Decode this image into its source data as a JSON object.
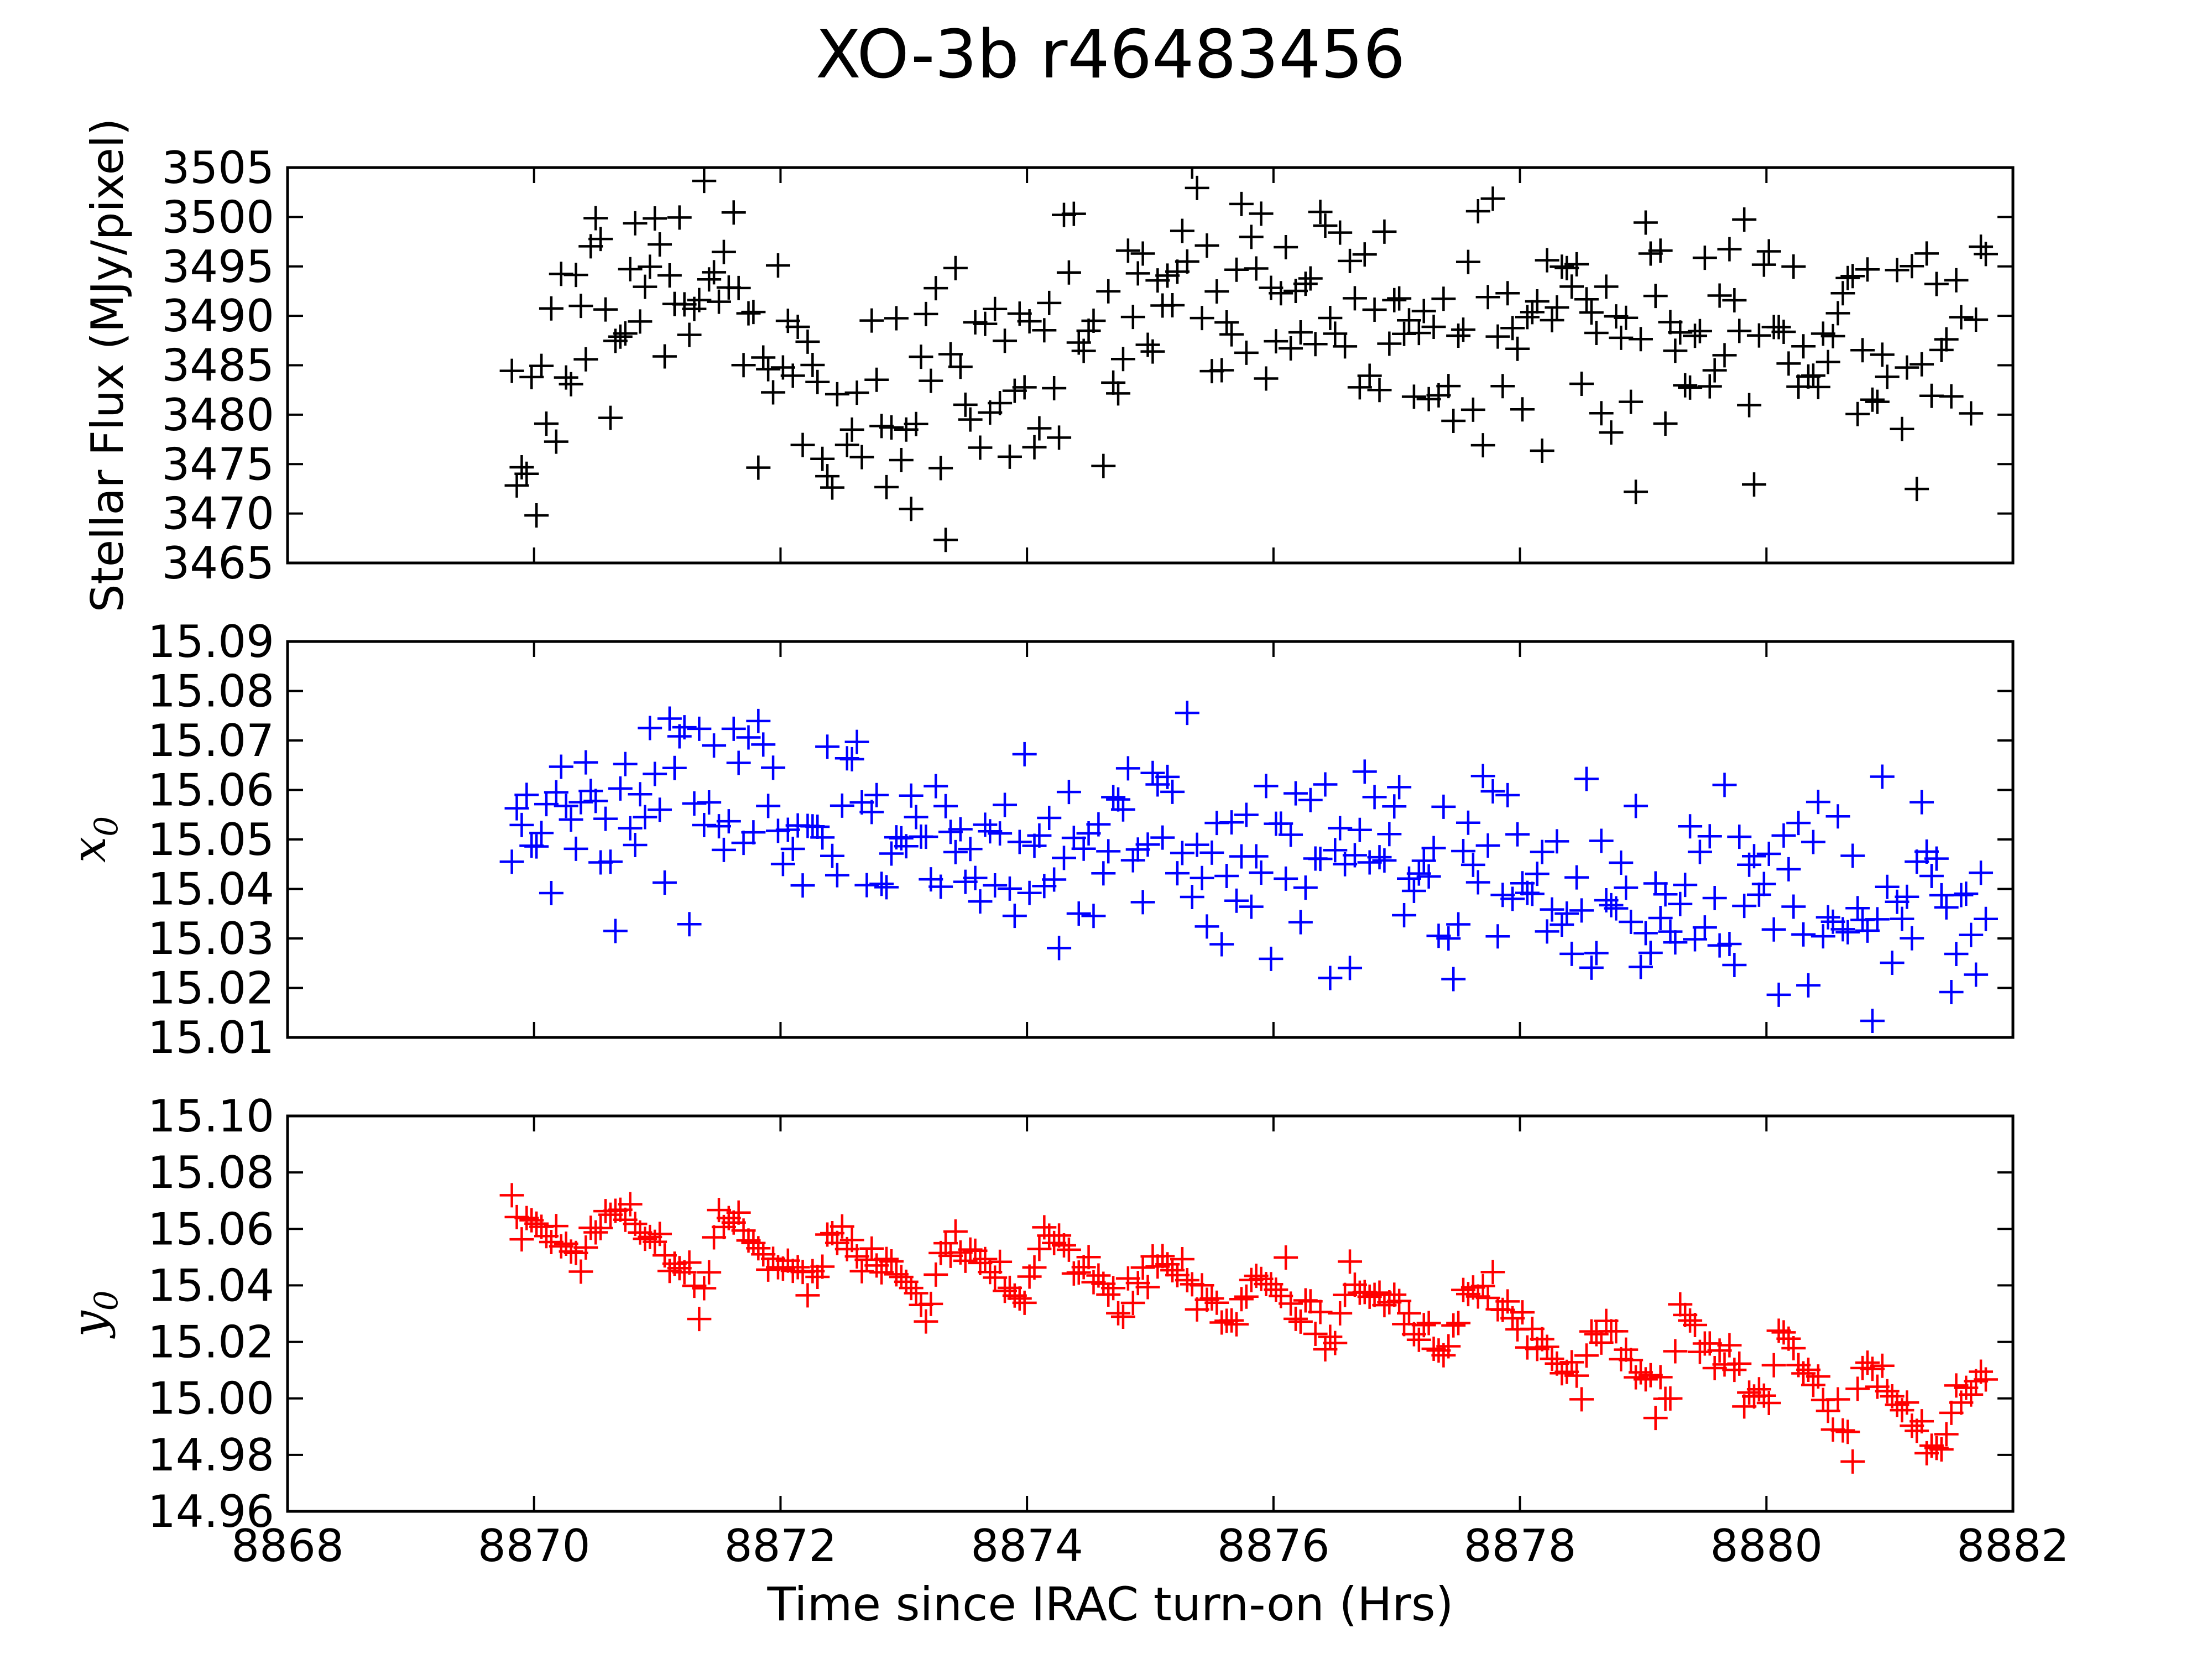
{
  "chart_data": {
    "type": "scatter",
    "title": "XO-3b r46483456",
    "xlabel": "Time since IRAC turn-on (Hrs)",
    "xlim": [
      8868,
      8882
    ],
    "x_ticks": [
      "8868",
      "8870",
      "8872",
      "8874",
      "8876",
      "8878",
      "8880",
      "8882"
    ],
    "x_tick_values": [
      8868,
      8870,
      8872,
      8874,
      8876,
      8878,
      8880,
      8882
    ],
    "marker": "+",
    "panels": [
      {
        "ylabel": "Stellar Flux (MJy/pixel)",
        "ylabel_math": false,
        "color": "#000000",
        "ylim": [
          3465,
          3505
        ],
        "y_ticks": [
          "3465",
          "3470",
          "3475",
          "3480",
          "3485",
          "3490",
          "3495",
          "3500",
          "3505"
        ],
        "y_tick_values": [
          3465,
          3470,
          3475,
          3480,
          3485,
          3490,
          3495,
          3500,
          3505
        ],
        "trend": {
          "t": [
            8869.8,
            8870.4,
            8871.3,
            8872.1,
            8872.5,
            8873.4,
            8874.6,
            8875.8,
            8876.4,
            8877.4,
            8878.2,
            8879.0,
            8880.0,
            8881.8
          ],
          "v": [
            3478,
            3490,
            3495,
            3485,
            3475,
            3482,
            3490,
            3493,
            3492,
            3488,
            3490,
            3486,
            3489,
            3490
          ]
        },
        "noise": 6.5,
        "count": 300
      },
      {
        "ylabel": "x",
        "ylabel_sub": "0",
        "ylabel_math": true,
        "color": "#0000ff",
        "ylim": [
          15.01,
          15.09
        ],
        "y_ticks": [
          "15.01",
          "15.02",
          "15.03",
          "15.04",
          "15.05",
          "15.06",
          "15.07",
          "15.08",
          "15.09"
        ],
        "y_tick_values": [
          15.01,
          15.02,
          15.03,
          15.04,
          15.05,
          15.06,
          15.07,
          15.08,
          15.09
        ],
        "trend": {
          "t": [
            8869.8,
            8871.4,
            8873.0,
            8875.0,
            8877.0,
            8879.0,
            8881.8
          ],
          "v": [
            15.052,
            15.062,
            15.05,
            15.049,
            15.046,
            15.04,
            15.036
          ]
        },
        "noise": 0.01,
        "count": 300
      },
      {
        "ylabel": "y",
        "ylabel_sub": "0",
        "ylabel_math": true,
        "color": "#ff0000",
        "ylim": [
          14.96,
          15.1
        ],
        "y_ticks": [
          "14.96",
          "14.98",
          "15.00",
          "15.02",
          "15.04",
          "15.06",
          "15.08",
          "15.10"
        ],
        "y_tick_values": [
          14.96,
          14.98,
          15.0,
          15.02,
          15.04,
          15.06,
          15.08,
          15.1
        ],
        "trend": {
          "t": [
            8869.8,
            8870.3,
            8870.7,
            8871.4,
            8871.5,
            8872.3,
            8872.4,
            8873.2,
            8873.3,
            8874.0,
            8874.1,
            8874.8,
            8875.0,
            8875.7,
            8875.9,
            8876.5,
            8876.6,
            8877.4,
            8877.6,
            8878.5,
            8878.6,
            8879.2,
            8879.3,
            8880.0,
            8880.1,
            8880.7,
            8880.8,
            8881.4,
            8881.5,
            8881.8
          ],
          "v": [
            15.07,
            15.052,
            15.068,
            15.035,
            15.066,
            15.04,
            15.06,
            15.033,
            15.058,
            15.033,
            15.06,
            15.03,
            15.05,
            15.028,
            15.048,
            15.02,
            15.045,
            15.018,
            15.045,
            15.005,
            15.03,
            14.998,
            15.03,
            14.995,
            15.022,
            14.985,
            15.012,
            14.98,
            14.995,
            15.012
          ]
        },
        "noise": 0.004,
        "count": 300
      }
    ]
  }
}
